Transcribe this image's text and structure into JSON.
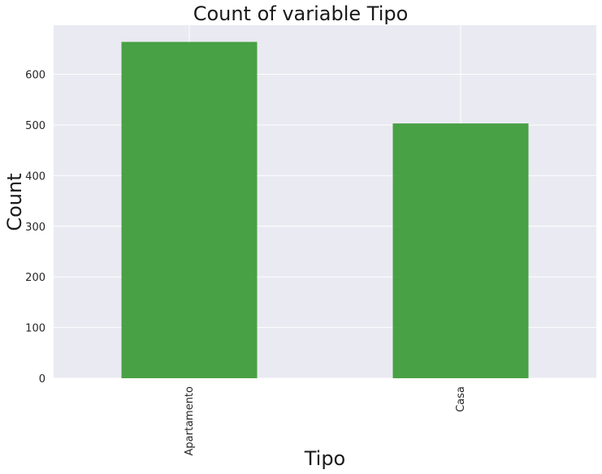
{
  "chart_data": {
    "type": "bar",
    "title": "Count of variable Tipo",
    "xlabel": "Tipo",
    "ylabel": "Count",
    "categories": [
      "Apartamento",
      "Casa"
    ],
    "values": [
      664,
      503
    ],
    "ylim": [
      0,
      697
    ],
    "yticks": [
      0,
      100,
      200,
      300,
      400,
      500,
      600
    ],
    "grid": true,
    "legend": "none",
    "colors": {
      "bar": "#3a9a36",
      "plot_background": "#eaeaf2",
      "grid": "#ffffff"
    }
  }
}
